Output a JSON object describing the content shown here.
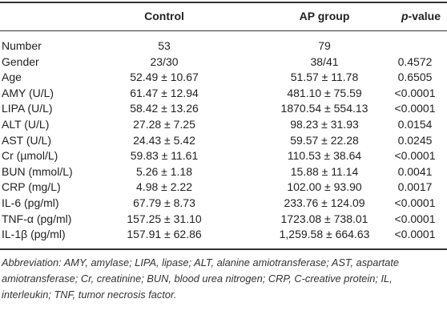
{
  "table": {
    "header": [
      "Control",
      "AP group",
      {
        "italic": "p",
        "text": "-value"
      }
    ],
    "rows": [
      [
        "Number",
        "53",
        "79"
      ],
      [
        "Gender",
        "23/30",
        "38/41",
        "0.4572"
      ],
      [
        "Age",
        "52.49 ± 10.67",
        "51.57 ± 11.78",
        "0.6505"
      ],
      [
        "AMY (U/L)",
        "61.47 ± 12.94",
        "481.10 ± 75.59",
        "<0.0001"
      ],
      [
        "LIPA (U/L)",
        "58.42 ± 13.26",
        "1870.54 ± 554.13",
        "<0.0001"
      ],
      [
        "ALT (U/L)",
        "27.28 ± 7.25",
        "98.23 ± 31.93",
        "0.0154"
      ],
      [
        "AST (U/L)",
        "24.43 ± 5.42",
        "59.57 ± 22.28",
        "0.0245"
      ],
      [
        "Cr (µmol/L)",
        "59.83 ± 11.61",
        "110.53 ± 38.64",
        "<0.0001"
      ],
      [
        "BUN (mmol/L)",
        "5.26 ± 1.18",
        "15.88 ± 11.14",
        "0.0041"
      ],
      [
        "CRP (mg/L)",
        "4.98 ± 2.22",
        "102.00 ± 93.90",
        "0.0017"
      ],
      [
        "IL-6 (pg/ml)",
        "67.79 ± 8.73",
        "233.76 ± 124.09",
        "<0.0001"
      ],
      [
        "TNF-α (pg/ml)",
        "157.25 ± 31.10",
        "1723.08 ± 738.01",
        "<0.0001"
      ],
      [
        "IL-1β (pg/ml)",
        "157.91 ± 62.86",
        "1,259.58 ± 664.63",
        "<0.0001"
      ]
    ],
    "footnote": "Abbreviation: AMY, amylase; LIPA, lipase; ALT, alanine amiotransferase; AST, aspartate amiotransferase; Cr, creatinine; BUN, blood urea nitrogen; CRP, C-creative protein; IL, interleukin; TNF, tumor necrosis factor."
  }
}
